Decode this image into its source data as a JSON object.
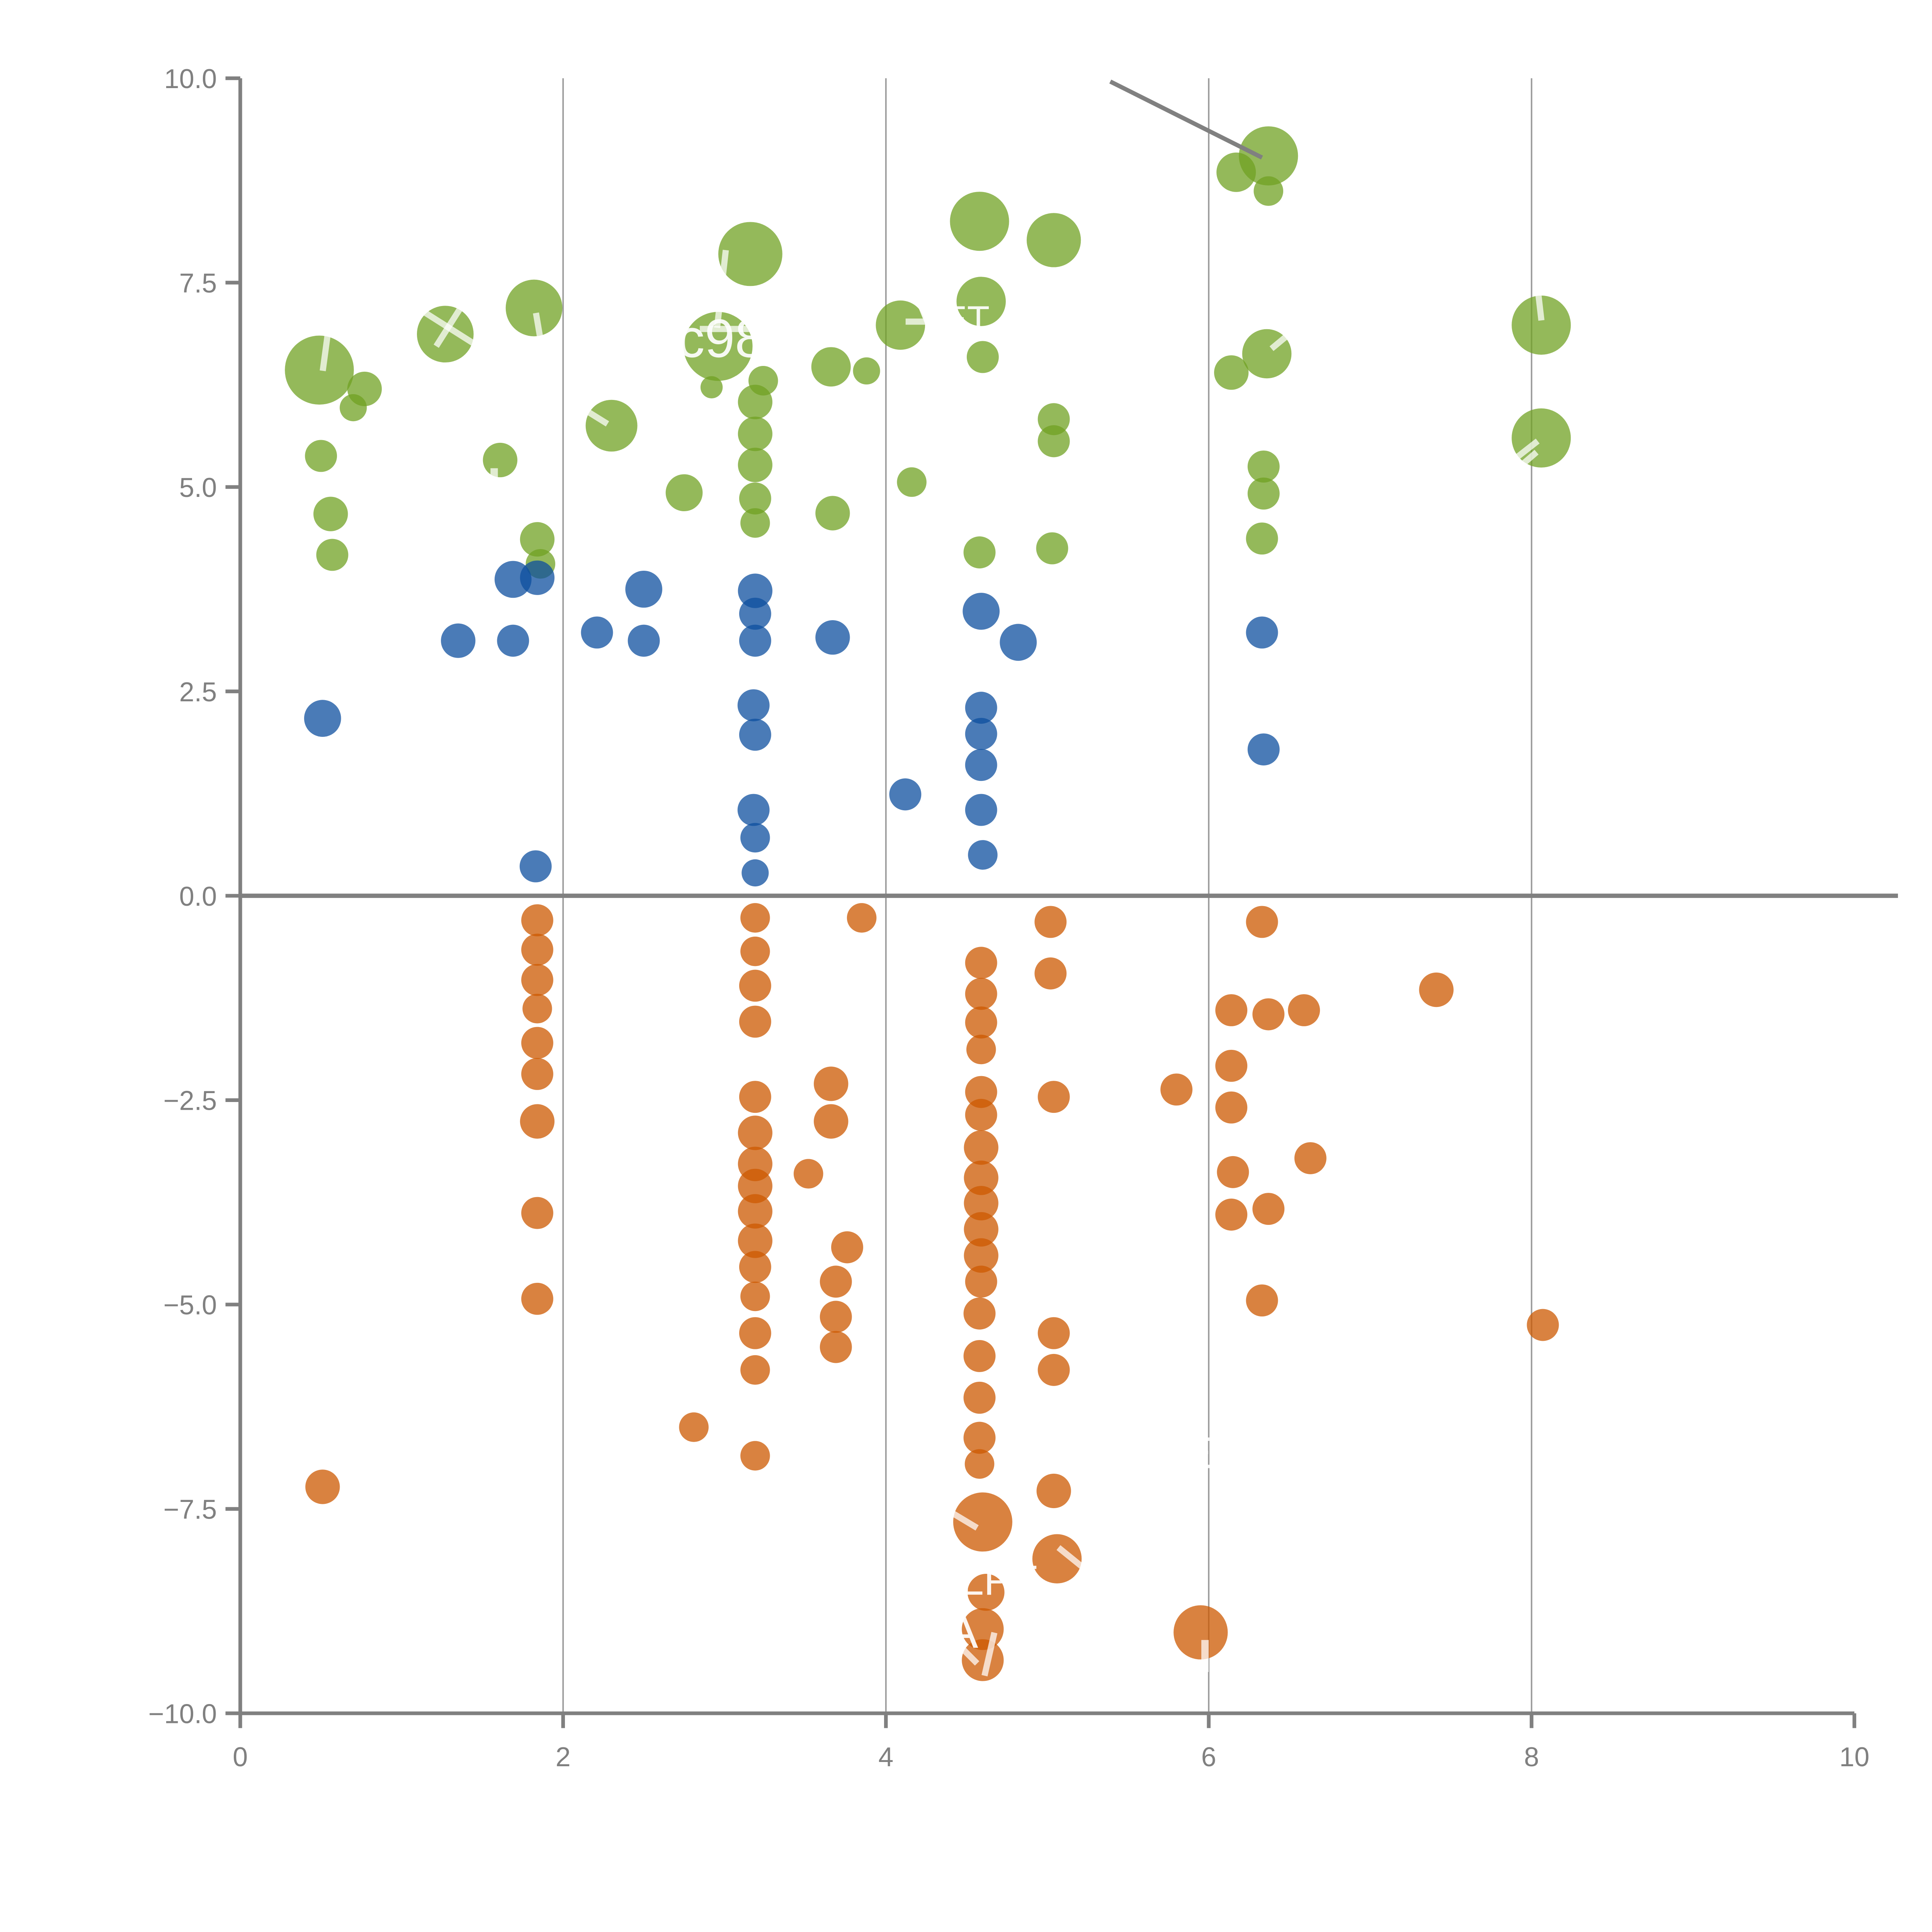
{
  "chart_data": {
    "type": "scatter",
    "title": "",
    "xlabel": "",
    "ylabel": "",
    "xlim": [
      0,
      10
    ],
    "ylim": [
      -10,
      10
    ],
    "x_ticks": [
      0,
      2,
      4,
      6,
      8,
      10
    ],
    "x_tick_labels": [
      "0",
      "2",
      "4",
      "6",
      "8",
      "10"
    ],
    "y_ticks": [
      10.0,
      7.5,
      5.0,
      2.5,
      0.0,
      -2.5,
      -5.0,
      -7.5,
      -10.0
    ],
    "y_tick_labels": [
      "10.0",
      "7.5",
      "5.0",
      "2.5",
      "0.0",
      "−2.5",
      "−5.0",
      "−7.5",
      "−10.0"
    ],
    "gridlines_x": [
      2,
      4,
      6,
      8
    ],
    "zero_line_y": 0,
    "axis_color": "#808080",
    "grid_color": "#9a9a9a",
    "tick_label_color": "#808080",
    "fill_opacity": 0.75,
    "series": [
      {
        "name": "green",
        "color": "#70A123",
        "points": [
          [
            0.49,
            6.43,
            28
          ],
          [
            0.77,
            6.2,
            14
          ],
          [
            0.7,
            5.97,
            11
          ],
          [
            0.5,
            5.38,
            13
          ],
          [
            0.56,
            4.67,
            14
          ],
          [
            0.57,
            4.17,
            13
          ],
          [
            1.27,
            6.87,
            23
          ],
          [
            1.82,
            7.19,
            23
          ],
          [
            1.61,
            5.33,
            14
          ],
          [
            1.84,
            4.36,
            14
          ],
          [
            1.86,
            4.06,
            12
          ],
          [
            2.3,
            5.75,
            21
          ],
          [
            2.75,
            4.93,
            15
          ],
          [
            3.16,
            7.85,
            26
          ],
          [
            2.96,
            6.72,
            28
          ],
          [
            2.92,
            6.22,
            9
          ],
          [
            3.24,
            6.3,
            12
          ],
          [
            3.19,
            6.04,
            14
          ],
          [
            3.19,
            5.65,
            14
          ],
          [
            3.19,
            5.27,
            14
          ],
          [
            3.19,
            4.86,
            13
          ],
          [
            3.19,
            4.56,
            12
          ],
          [
            3.66,
            6.47,
            16
          ],
          [
            3.88,
            6.42,
            11
          ],
          [
            3.67,
            4.68,
            14
          ],
          [
            4.09,
            6.98,
            20
          ],
          [
            4.16,
            5.06,
            12
          ],
          [
            4.58,
            8.25,
            24
          ],
          [
            4.59,
            7.27,
            20
          ],
          [
            4.6,
            6.59,
            13
          ],
          [
            4.58,
            4.2,
            13
          ],
          [
            5.04,
            8.02,
            22
          ],
          [
            5.04,
            5.83,
            13
          ],
          [
            5.04,
            5.56,
            13
          ],
          [
            5.03,
            4.25,
            13
          ],
          [
            6.37,
            9.05,
            24
          ],
          [
            6.17,
            8.85,
            16
          ],
          [
            6.37,
            8.62,
            12
          ],
          [
            6.36,
            6.63,
            20
          ],
          [
            6.14,
            6.4,
            14
          ],
          [
            6.34,
            5.25,
            13
          ],
          [
            6.34,
            4.92,
            13
          ],
          [
            6.33,
            4.37,
            13
          ],
          [
            8.06,
            6.98,
            24
          ],
          [
            8.06,
            5.6,
            24
          ]
        ]
      },
      {
        "name": "blue",
        "color": "#0D4F9F",
        "points": [
          [
            0.51,
            2.17,
            15
          ],
          [
            1.35,
            3.12,
            14
          ],
          [
            1.69,
            3.87,
            15
          ],
          [
            1.84,
            3.89,
            14
          ],
          [
            1.69,
            3.12,
            13
          ],
          [
            1.83,
            0.36,
            13
          ],
          [
            2.21,
            3.22,
            13
          ],
          [
            2.5,
            3.75,
            15
          ],
          [
            2.5,
            3.12,
            13
          ],
          [
            3.19,
            3.73,
            14
          ],
          [
            3.19,
            3.45,
            13
          ],
          [
            3.19,
            3.12,
            13
          ],
          [
            3.18,
            2.33,
            13
          ],
          [
            3.19,
            1.97,
            13
          ],
          [
            3.18,
            1.05,
            13
          ],
          [
            3.19,
            0.71,
            12
          ],
          [
            3.19,
            0.28,
            11
          ],
          [
            3.67,
            3.16,
            14
          ],
          [
            4.12,
            1.24,
            13
          ],
          [
            4.59,
            3.48,
            15
          ],
          [
            4.82,
            3.1,
            15
          ],
          [
            4.59,
            2.3,
            13
          ],
          [
            4.59,
            1.98,
            13
          ],
          [
            4.59,
            1.6,
            13
          ],
          [
            4.59,
            1.05,
            13
          ],
          [
            4.6,
            0.5,
            12
          ],
          [
            6.33,
            3.22,
            13
          ],
          [
            6.34,
            1.79,
            13
          ]
        ]
      },
      {
        "name": "orange",
        "color": "#CC5800",
        "points": [
          [
            0.51,
            -7.23,
            14
          ],
          [
            1.84,
            -0.3,
            13
          ],
          [
            1.84,
            -0.66,
            13
          ],
          [
            1.84,
            -1.03,
            13
          ],
          [
            1.84,
            -1.38,
            12
          ],
          [
            1.84,
            -1.8,
            13
          ],
          [
            1.84,
            -2.18,
            13
          ],
          [
            1.84,
            -2.76,
            14
          ],
          [
            1.84,
            -3.88,
            13
          ],
          [
            1.84,
            -4.93,
            13
          ],
          [
            2.81,
            -6.5,
            12
          ],
          [
            3.19,
            -0.27,
            12
          ],
          [
            3.19,
            -0.68,
            12
          ],
          [
            3.19,
            -1.1,
            13
          ],
          [
            3.19,
            -1.54,
            13
          ],
          [
            3.19,
            -2.46,
            13
          ],
          [
            3.19,
            -2.9,
            14
          ],
          [
            3.19,
            -3.28,
            14
          ],
          [
            3.19,
            -3.55,
            14
          ],
          [
            3.19,
            -3.86,
            14
          ],
          [
            3.19,
            -4.22,
            14
          ],
          [
            3.19,
            -4.54,
            13
          ],
          [
            3.19,
            -4.9,
            12
          ],
          [
            3.19,
            -5.35,
            13
          ],
          [
            3.19,
            -5.8,
            12
          ],
          [
            3.19,
            -6.85,
            12
          ],
          [
            3.52,
            -3.4,
            12
          ],
          [
            3.66,
            -2.3,
            14
          ],
          [
            3.66,
            -2.76,
            14
          ],
          [
            3.69,
            -4.72,
            13
          ],
          [
            3.69,
            -5.15,
            13
          ],
          [
            3.69,
            -5.52,
            13
          ],
          [
            3.76,
            -4.3,
            13
          ],
          [
            3.85,
            -0.27,
            12
          ],
          [
            4.59,
            -0.82,
            13
          ],
          [
            4.59,
            -1.2,
            13
          ],
          [
            4.59,
            -1.55,
            13
          ],
          [
            4.59,
            -1.88,
            12
          ],
          [
            4.59,
            -2.4,
            13
          ],
          [
            4.59,
            -2.68,
            13
          ],
          [
            4.59,
            -3.08,
            14
          ],
          [
            4.59,
            -3.45,
            14
          ],
          [
            4.59,
            -3.76,
            14
          ],
          [
            4.59,
            -4.08,
            14
          ],
          [
            4.59,
            -4.4,
            14
          ],
          [
            4.59,
            -4.72,
            13
          ],
          [
            4.58,
            -5.11,
            13
          ],
          [
            4.58,
            -5.63,
            13
          ],
          [
            4.58,
            -6.14,
            13
          ],
          [
            4.58,
            -6.63,
            13
          ],
          [
            4.58,
            -6.95,
            12
          ],
          [
            4.6,
            -7.66,
            24
          ],
          [
            4.62,
            -8.52,
            15
          ],
          [
            4.6,
            -8.97,
            17
          ],
          [
            4.6,
            -9.35,
            17
          ],
          [
            5.02,
            -0.32,
            13
          ],
          [
            5.02,
            -0.95,
            13
          ],
          [
            5.04,
            -2.46,
            13
          ],
          [
            5.04,
            -5.35,
            13
          ],
          [
            5.04,
            -5.8,
            13
          ],
          [
            5.04,
            -7.28,
            14
          ],
          [
            5.06,
            -8.11,
            20
          ],
          [
            5.8,
            -2.37,
            13
          ],
          [
            5.95,
            -9.01,
            22
          ],
          [
            6.14,
            -1.4,
            13
          ],
          [
            6.37,
            -1.45,
            13
          ],
          [
            6.59,
            -1.4,
            13
          ],
          [
            6.33,
            -0.32,
            13
          ],
          [
            6.14,
            -2.08,
            13
          ],
          [
            6.14,
            -2.59,
            13
          ],
          [
            6.15,
            -3.38,
            13
          ],
          [
            6.14,
            -3.9,
            13
          ],
          [
            6.37,
            -3.83,
            13
          ],
          [
            6.33,
            -4.95,
            13
          ],
          [
            6.63,
            -3.21,
            13
          ],
          [
            7.41,
            -1.15,
            14
          ],
          [
            8.07,
            -5.25,
            13
          ]
        ]
      }
    ],
    "point_labels": [
      {
        "text": "c98",
        "x": 2.98,
        "y": 6.59,
        "size": 44
      },
      {
        "text": "VET",
        "x": 4.42,
        "y": 6.9,
        "size": 30
      },
      {
        "text": "LPT",
        "x": 4.7,
        "y": -8.55,
        "size": 34
      },
      {
        "text": "E",
        "x": 5.93,
        "y": -7.0,
        "size": 36
      },
      {
        "text": "A",
        "x": 4.47,
        "y": -9.2,
        "size": 40
      }
    ],
    "label_fragments": [
      [
        0.542,
        6.873,
        0.511,
        6.421,
        5
      ],
      [
        1.099,
        7.19,
        1.473,
        6.722,
        5
      ],
      [
        1.374,
        7.22,
        1.214,
        6.722,
        5
      ],
      [
        1.832,
        7.129,
        1.863,
        6.767,
        5
      ],
      [
        2.847,
        6.933,
        3.176,
        6.933,
        5
      ],
      [
        4.122,
        7.023,
        4.313,
        7.023,
        5
      ],
      [
        2.115,
        5.968,
        2.275,
        5.772,
        5
      ],
      [
        3.008,
        7.898,
        2.954,
        6.948,
        5
      ],
      [
        1.573,
        5.23,
        1.573,
        5.079,
        6
      ],
      [
        4.763,
        7.083,
        4.725,
        6.767,
        5
      ],
      [
        6.389,
        6.692,
        6.527,
        6.918,
        5
      ],
      [
        8.038,
        7.43,
        8.061,
        7.038,
        5
      ],
      [
        7.901,
        5.351,
        8.038,
        5.562,
        5
      ],
      [
        7.924,
        5.245,
        8.031,
        5.426,
        5
      ],
      [
        4.412,
        -7.551,
        4.565,
        -7.732,
        5
      ],
      [
        5.069,
        -7.973,
        5.229,
        -8.229,
        5
      ],
      [
        4.405,
        -9.073,
        4.565,
        -9.39,
        5
      ],
      [
        4.672,
        -9.013,
        4.611,
        -9.54,
        5
      ],
      [
        5.977,
        -9.103,
        5.977,
        -9.495,
        6
      ]
    ],
    "fragment_color": "#ffffff",
    "fragment_opacity": 0.72,
    "annotation_line": {
      "x1": 5.39,
      "y1": 9.96,
      "x2": 6.33,
      "y2": 9.03,
      "color": "#808080",
      "width": 3.5
    },
    "zero_line": {
      "color": "#808080",
      "width": 3.5,
      "x_end": 10.27
    },
    "legend": null
  }
}
